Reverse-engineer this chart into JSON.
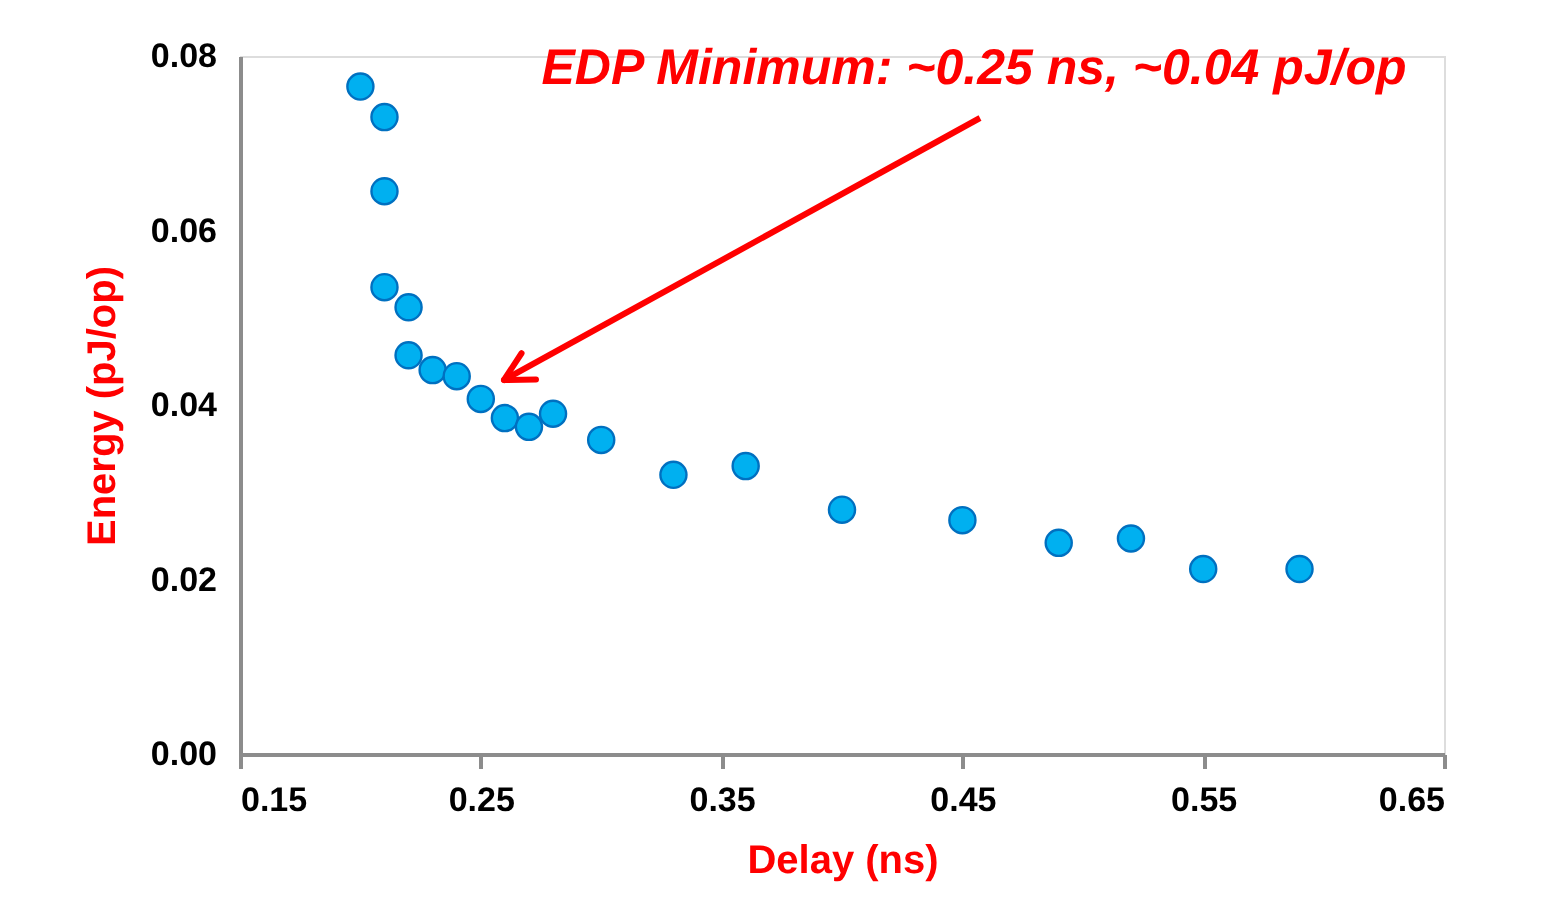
{
  "chart_data": {
    "type": "scatter",
    "xlabel": "Delay (ns)",
    "ylabel": "Energy (pJ/op)",
    "x": [
      0.2,
      0.21,
      0.21,
      0.21,
      0.22,
      0.22,
      0.23,
      0.24,
      0.25,
      0.26,
      0.27,
      0.28,
      0.3,
      0.33,
      0.36,
      0.4,
      0.45,
      0.49,
      0.52,
      0.55,
      0.59
    ],
    "series": [
      {
        "color": "#00b0f0",
        "values": [
          0.0765,
          0.073,
          0.0645,
          0.0535,
          0.0512,
          0.0457,
          0.044,
          0.0433,
          0.0407,
          0.0385,
          0.0375,
          0.039,
          0.036,
          0.032,
          0.033,
          0.028,
          0.0268,
          0.0242,
          0.0247,
          0.0212,
          0.0212
        ]
      }
    ],
    "xlim": [
      0.15,
      0.65
    ],
    "xticks": [
      0.15,
      0.25,
      0.35,
      0.45,
      0.55,
      0.65
    ],
    "ylim": [
      0,
      0.08
    ],
    "yticks": [
      {
        "value": 0,
        "label": "0.00"
      },
      {
        "value": 0.02,
        "label": "0.02"
      },
      {
        "value": 0.04,
        "label": "0.04"
      },
      {
        "value": 0.06,
        "label": "0.06"
      },
      {
        "value": 0.08,
        "label": "0.08"
      }
    ],
    "annotations": [
      "EDP Minimum: ~0.25 ns, ~0.04 pJ/op"
    ],
    "marker": "circle",
    "grid": false
  }
}
